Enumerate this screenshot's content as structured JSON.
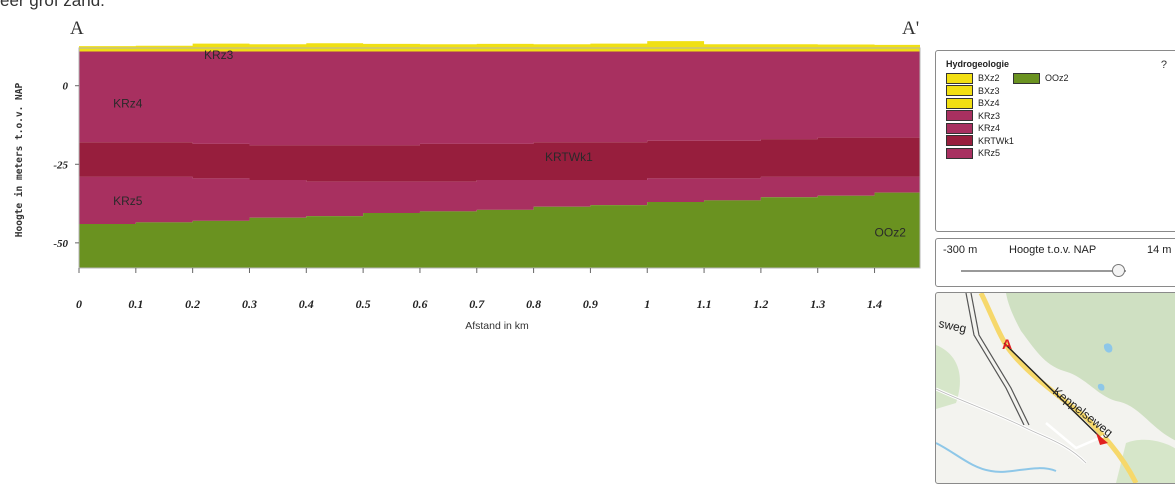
{
  "caption_fragment": "eer grof zand.",
  "section": {
    "start_label": "A",
    "end_label": "A'",
    "ylabel": "Hoogte in meters t.o.v. NAP",
    "xlabel": "Afstand in km"
  },
  "chart_data": {
    "type": "area",
    "title": "",
    "xlabel": "Afstand in km",
    "ylabel": "Hoogte in meters t.o.v. NAP",
    "xlim": [
      0,
      1.48
    ],
    "ylim": [
      -58,
      12
    ],
    "x_ticks": [
      "0",
      "0.1",
      "0.2",
      "0.3",
      "0.4",
      "0.5",
      "0.6",
      "0.7",
      "0.8",
      "0.9",
      "1",
      "1.1",
      "1.2",
      "1.3",
      "1.4"
    ],
    "y_ticks": [
      "0",
      "-25",
      "-50"
    ],
    "x": [
      0,
      0.1,
      0.2,
      0.3,
      0.4,
      0.5,
      0.6,
      0.7,
      0.8,
      0.9,
      1.0,
      1.1,
      1.2,
      1.3,
      1.4,
      1.48
    ],
    "series": [
      {
        "name": "BXz2",
        "color": "#f0e014",
        "top": [
          12.6,
          12.7,
          13.4,
          13.2,
          13.5,
          13.3,
          13.2,
          13.3,
          13.2,
          13.4,
          14.2,
          13.2,
          13.2,
          13.1,
          13.0,
          13.0
        ],
        "bottom": [
          10.9,
          10.9,
          10.9,
          10.9,
          10.9,
          10.9,
          10.9,
          10.9,
          10.9,
          10.9,
          10.9,
          10.9,
          10.9,
          10.9,
          10.9,
          10.9
        ]
      },
      {
        "name": "KRz4",
        "color": "#a83060",
        "top": [
          10.9,
          10.9,
          10.9,
          10.9,
          10.9,
          10.9,
          10.9,
          10.9,
          10.9,
          10.9,
          10.9,
          10.9,
          10.9,
          10.9,
          10.9,
          10.9
        ],
        "bottom": [
          -18.0,
          -18.0,
          -18.5,
          -19.0,
          -19.0,
          -19.0,
          -18.5,
          -18.5,
          -18.0,
          -18.0,
          -17.5,
          -17.5,
          -17.0,
          -16.5,
          -16.5,
          -16.0
        ]
      },
      {
        "name": "KRTWk1",
        "color": "#971e3d",
        "top": [
          -18.0,
          -18.0,
          -18.5,
          -19.0,
          -19.0,
          -19.0,
          -18.5,
          -18.5,
          -18.0,
          -18.0,
          -17.5,
          -17.5,
          -17.0,
          -16.5,
          -16.5,
          -16.0
        ],
        "bottom": [
          -29.0,
          -29.0,
          -29.5,
          -30.0,
          -30.5,
          -30.5,
          -30.5,
          -30.0,
          -30.0,
          -30.0,
          -29.5,
          -29.5,
          -29.0,
          -29.0,
          -29.0,
          -29.0
        ]
      },
      {
        "name": "KRz5",
        "color": "#a83060",
        "top": [
          -29.0,
          -29.0,
          -29.5,
          -30.0,
          -30.5,
          -30.5,
          -30.5,
          -30.0,
          -30.0,
          -30.0,
          -29.5,
          -29.5,
          -29.0,
          -29.0,
          -29.0,
          -29.0
        ],
        "bottom": [
          -44.0,
          -43.5,
          -43.0,
          -42.0,
          -41.5,
          -40.5,
          -40.0,
          -39.5,
          -38.5,
          -38.0,
          -37.0,
          -36.5,
          -35.5,
          -35.0,
          -34.0,
          -33.5
        ]
      },
      {
        "name": "OOz2",
        "color": "#6a9220",
        "top": [
          -44.0,
          -43.5,
          -43.0,
          -42.0,
          -41.5,
          -40.5,
          -40.0,
          -39.5,
          -38.5,
          -38.0,
          -37.0,
          -36.5,
          -35.5,
          -35.0,
          -34.0,
          -33.5
        ],
        "bottom": [
          -58.0,
          -58.0,
          -58.0,
          -58.0,
          -58.0,
          -58.0,
          -58.0,
          -58.0,
          -58.0,
          -58.0,
          -58.0,
          -58.0,
          -58.0,
          -58.0,
          -58.0,
          -58.0
        ]
      }
    ],
    "layer_labels": [
      {
        "text": "KRz3",
        "x": 0.22,
        "y": 8.5
      },
      {
        "text": "KRz4",
        "x": 0.06,
        "y": -7
      },
      {
        "text": "KRTWk1",
        "x": 0.82,
        "y": -24
      },
      {
        "text": "KRz5",
        "x": 0.06,
        "y": -38
      },
      {
        "text": "OOz2",
        "x": 1.4,
        "y": -48
      }
    ]
  },
  "legend": {
    "title": "Hydrogeologie",
    "help": "?",
    "items": [
      {
        "label": "BXz2",
        "color": "#f2df12"
      },
      {
        "label": "BXz3",
        "color": "#f2df12"
      },
      {
        "label": "BXz4",
        "color": "#f2df12"
      },
      {
        "label": "KRz3",
        "color": "#a83060"
      },
      {
        "label": "KRz4",
        "color": "#a83060"
      },
      {
        "label": "KRTWk1",
        "color": "#971e3d"
      },
      {
        "label": "KRz5",
        "color": "#a83060"
      },
      {
        "label": "OOz2",
        "color": "#6a9220"
      }
    ]
  },
  "height_control": {
    "min_label": "-300 m",
    "label": "Hoogte t.o.v. NAP",
    "max_label": "14 m",
    "value_fraction": 0.95
  },
  "map": {
    "street_label": "Keppelseweg",
    "street_fragment": "sweg",
    "marker_label": "A"
  }
}
